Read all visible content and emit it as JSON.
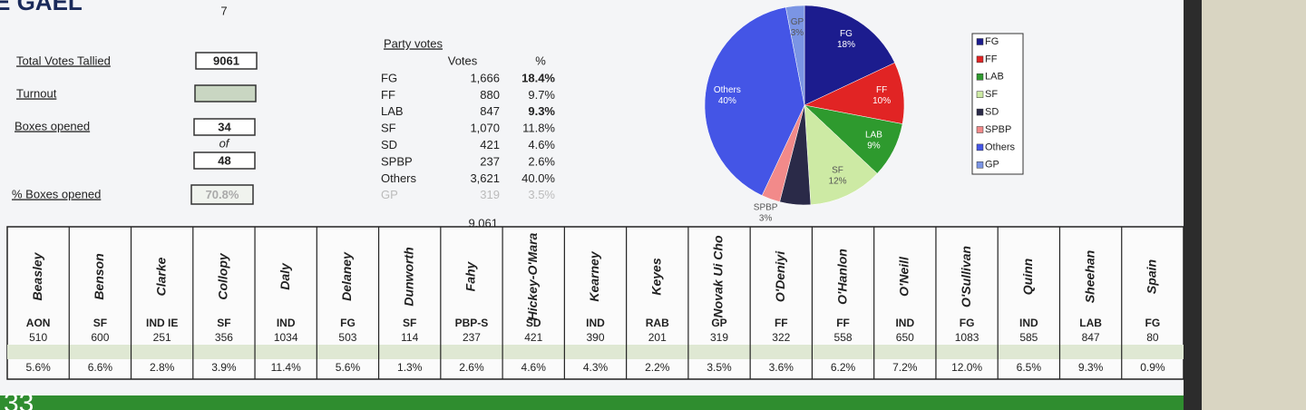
{
  "header": {
    "brand": "E GAEL",
    "count": "7"
  },
  "summary": {
    "total_label": "Total Votes Tallied",
    "total": "9061",
    "turnout_label": "Turnout",
    "boxes_label": "Boxes opened",
    "boxes_opened": "34",
    "of": "of",
    "boxes_total": "48",
    "pct_label": "% Boxes opened",
    "pct": "70.8%"
  },
  "party_votes": {
    "title": "Party votes",
    "columns": [
      "Votes",
      "%"
    ],
    "rows": [
      [
        "FG",
        "1,666",
        "18.4%"
      ],
      [
        "FF",
        "880",
        "9.7%"
      ],
      [
        "LAB",
        "847",
        "9.3%"
      ],
      [
        "SF",
        "1,070",
        "11.8%"
      ],
      [
        "SD",
        "421",
        "4.6%"
      ],
      [
        "SPBP",
        "237",
        "2.6%"
      ],
      [
        "Others",
        "3,621",
        "40.0%"
      ],
      [
        "GP",
        "319",
        "3.5%"
      ]
    ],
    "total": "9,061"
  },
  "chart_data": {
    "type": "pie",
    "categories": [
      "FG",
      "FF",
      "LAB",
      "SF",
      "SD",
      "SPBP",
      "Others",
      "GP"
    ],
    "values": [
      18,
      10,
      9,
      12,
      5,
      3,
      40,
      3
    ],
    "value_labels": [
      "18%",
      "10%",
      "9%",
      "12%",
      null,
      "3%",
      "40%",
      "3%"
    ],
    "colors": [
      "#1c1c8e",
      "#e12424",
      "#2e9a2e",
      "#cdeaa4",
      "#2a2a48",
      "#f28a8a",
      "#4455e6",
      "#7b95e4"
    ],
    "legend": "right"
  },
  "candidates": {
    "rows": [
      [
        "Beasley",
        "AON",
        "510",
        "5.6%"
      ],
      [
        "Benson",
        "SF",
        "600",
        "6.6%"
      ],
      [
        "Clarke",
        "IND IE",
        "251",
        "2.8%"
      ],
      [
        "Collopy",
        "SF",
        "356",
        "3.9%"
      ],
      [
        "Daly",
        "IND",
        "1034",
        "11.4%"
      ],
      [
        "Delaney",
        "FG",
        "503",
        "5.6%"
      ],
      [
        "Dunworth",
        "SF",
        "114",
        "1.3%"
      ],
      [
        "Fahy",
        "PBP-S",
        "237",
        "2.6%"
      ],
      [
        "Hickey-O'Mara",
        "SD",
        "421",
        "4.6%"
      ],
      [
        "Kearney",
        "IND",
        "390",
        "4.3%"
      ],
      [
        "Keyes",
        "RAB",
        "201",
        "2.2%"
      ],
      [
        "Novak Ui Cho",
        "GP",
        "319",
        "3.5%"
      ],
      [
        "O'Deniyi",
        "FF",
        "322",
        "3.6%"
      ],
      [
        "O'Hanlon",
        "FF",
        "558",
        "6.2%"
      ],
      [
        "O'Neill",
        "IND",
        "650",
        "7.2%"
      ],
      [
        "O'Sullivan",
        "FG",
        "1083",
        "12.0%"
      ],
      [
        "Quinn",
        "IND",
        "585",
        "6.5%"
      ],
      [
        "Sheehan",
        "LAB",
        "847",
        "9.3%"
      ],
      [
        "Spain",
        "FG",
        "80",
        "0.9%"
      ]
    ]
  },
  "clock": "33"
}
